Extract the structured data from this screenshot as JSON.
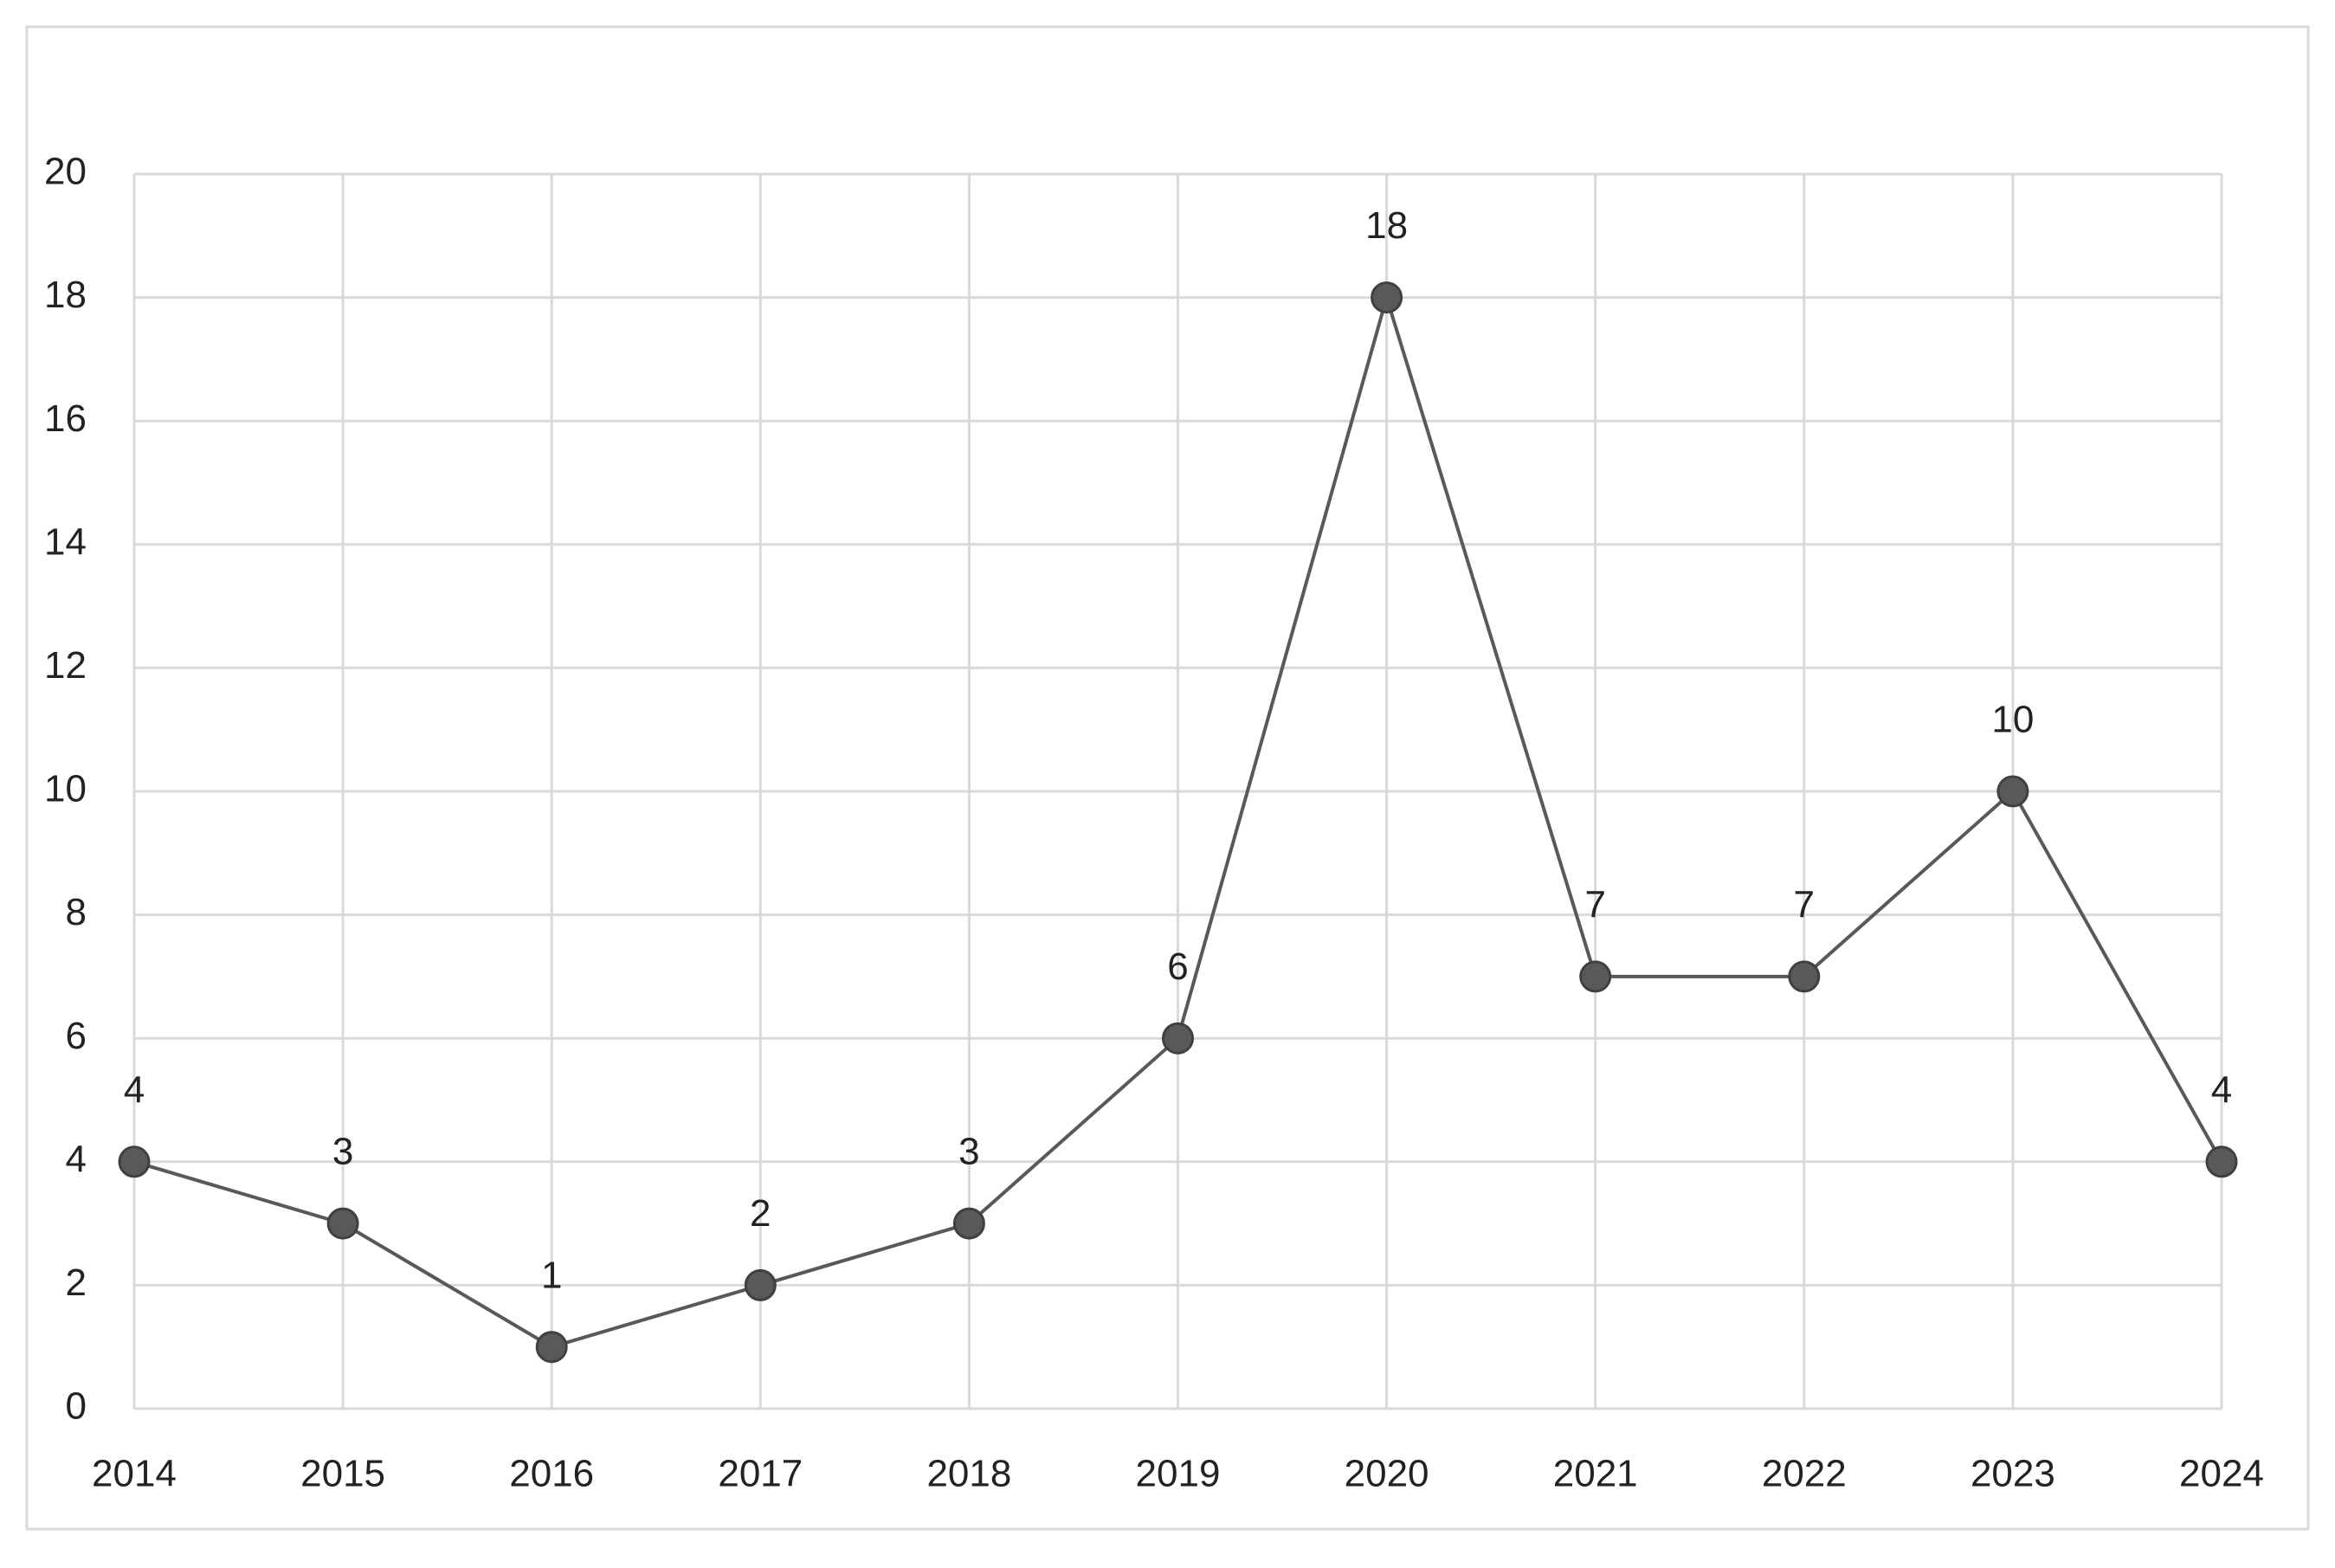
{
  "chart_data": {
    "type": "line",
    "categories": [
      "2014",
      "2015",
      "2016",
      "2017",
      "2018",
      "2019",
      "2020",
      "2021",
      "2022",
      "2023",
      "2024"
    ],
    "values": [
      4,
      3,
      1,
      2,
      3,
      6,
      18,
      7,
      7,
      10,
      4
    ],
    "color": "#595959",
    "ylim": [
      0,
      20
    ],
    "yticks": [
      0,
      2,
      4,
      6,
      8,
      10,
      12,
      14,
      16,
      18,
      20
    ],
    "grid": true
  }
}
